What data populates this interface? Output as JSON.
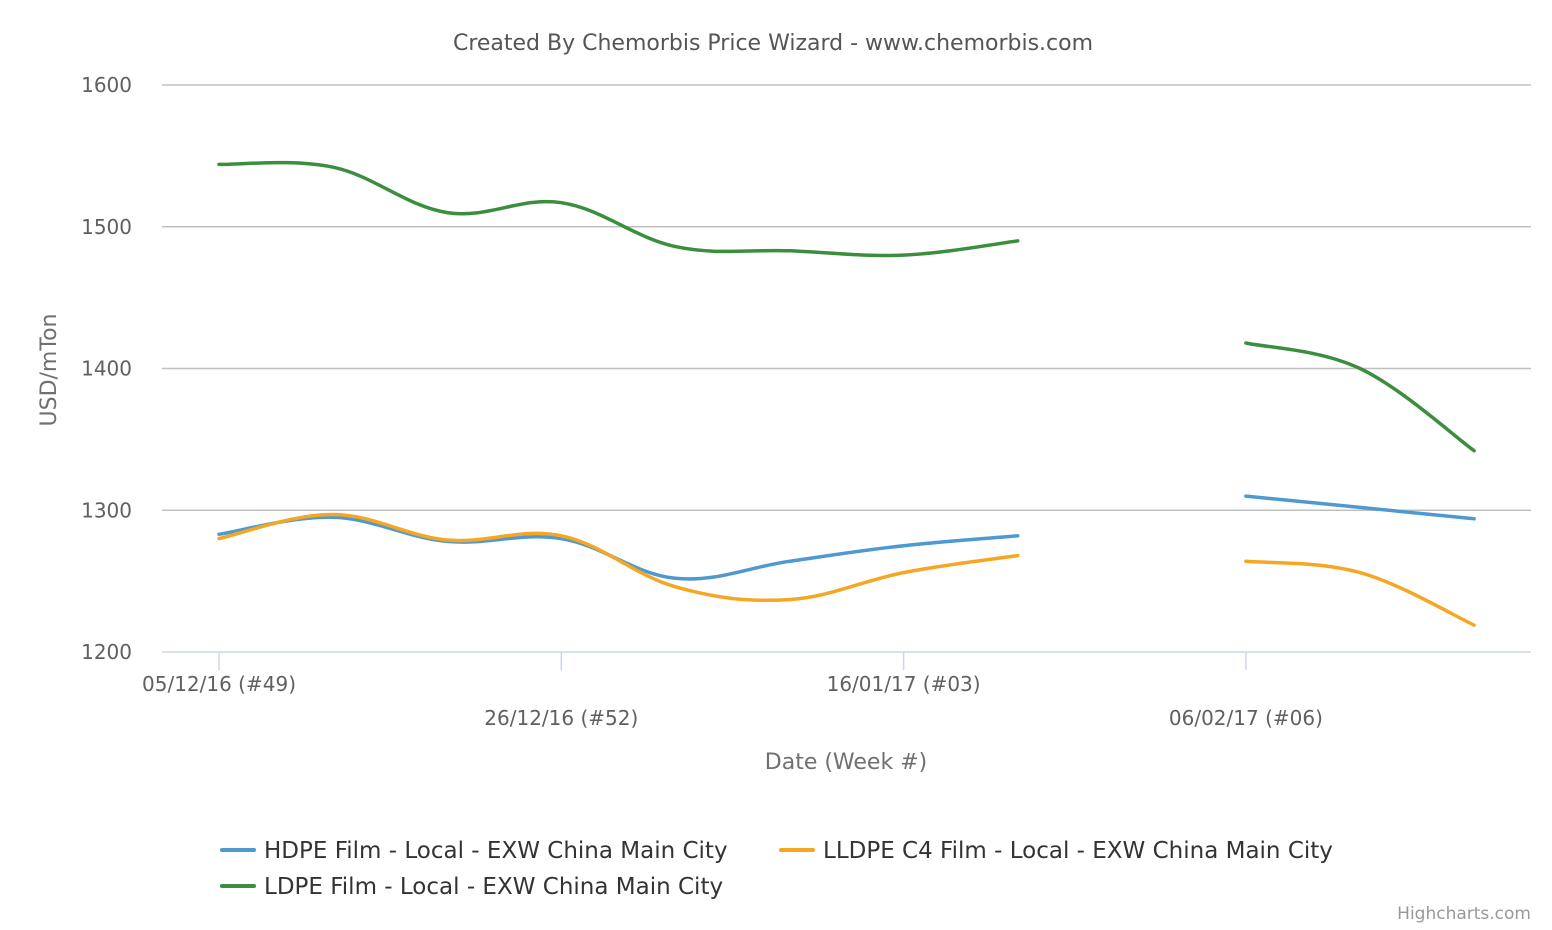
{
  "chart_data": {
    "type": "line",
    "title": "Created By Chemorbis Price Wizard - www.chemorbis.com",
    "xlabel": "Date (Week #)",
    "ylabel": "USD/mTon",
    "ylim": [
      1200,
      1600
    ],
    "yticks": [
      1200,
      1300,
      1400,
      1500,
      1600
    ],
    "x": [
      0,
      1,
      2,
      3,
      4,
      5,
      6,
      7,
      8,
      9,
      10,
      11,
      12
    ],
    "xticks": [
      {
        "x": 0,
        "label": "05/12/16 (#49)",
        "row": 1
      },
      {
        "x": 3,
        "label": "26/12/16 (#52)",
        "row": 2
      },
      {
        "x": 6,
        "label": "16/01/17 (#03)",
        "row": 1
      },
      {
        "x": 9,
        "label": "06/02/17 (#06)",
        "row": 2
      }
    ],
    "grid": true,
    "legend_position": "bottom",
    "credits": "Highcharts.com",
    "series": [
      {
        "name": "HDPE Film - Local - EXW China Main City",
        "color": "#4e9ad0",
        "x": [
          0,
          1,
          2,
          3,
          4,
          5,
          6,
          7,
          9,
          10,
          11
        ],
        "values": [
          1283,
          1295,
          1278,
          1280,
          1252,
          1264,
          1275,
          1282,
          1310,
          1302,
          1294
        ]
      },
      {
        "name": "LLDPE C4 Film - Local - EXW China Main City",
        "color": "#f5a623",
        "x": [
          0,
          1,
          2,
          3,
          4,
          5,
          6,
          7,
          9,
          10,
          11
        ],
        "values": [
          1280,
          1297,
          1279,
          1282,
          1246,
          1237,
          1256,
          1268,
          1264,
          1256,
          1219
        ]
      },
      {
        "name": "LDPE Film - Local - EXW China Main City",
        "color": "#3b8e3e",
        "x": [
          0,
          1,
          2,
          3,
          4,
          5,
          6,
          7,
          9,
          10,
          11
        ],
        "values": [
          1544,
          1542,
          1510,
          1517,
          1486,
          1483,
          1480,
          1490,
          1418,
          1400,
          1342
        ]
      }
    ]
  }
}
